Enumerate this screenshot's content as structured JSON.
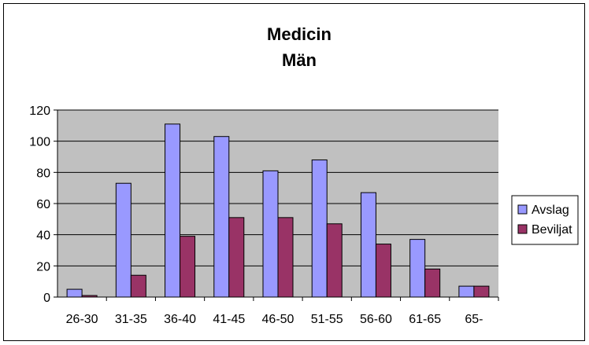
{
  "chart_data": {
    "type": "bar",
    "title": "Medicin",
    "subtitle": "Män",
    "xlabel": "",
    "ylabel": "",
    "categories": [
      "26-30",
      "31-35",
      "36-40",
      "41-45",
      "46-50",
      "51-55",
      "56-60",
      "61-65",
      "65-"
    ],
    "series": [
      {
        "name": "Avslag",
        "color": "#9999ff",
        "values": [
          5,
          73,
          111,
          103,
          81,
          88,
          67,
          37,
          7
        ]
      },
      {
        "name": "Beviljat",
        "color": "#993366",
        "values": [
          1,
          14,
          39,
          51,
          51,
          47,
          34,
          18,
          7
        ]
      }
    ],
    "ylim": [
      0,
      120
    ],
    "yticks": [
      "0",
      "20",
      "40",
      "60",
      "80",
      "100",
      "120"
    ],
    "grid": true,
    "plot_background": "#c0c0c0",
    "legend_position": "right"
  }
}
